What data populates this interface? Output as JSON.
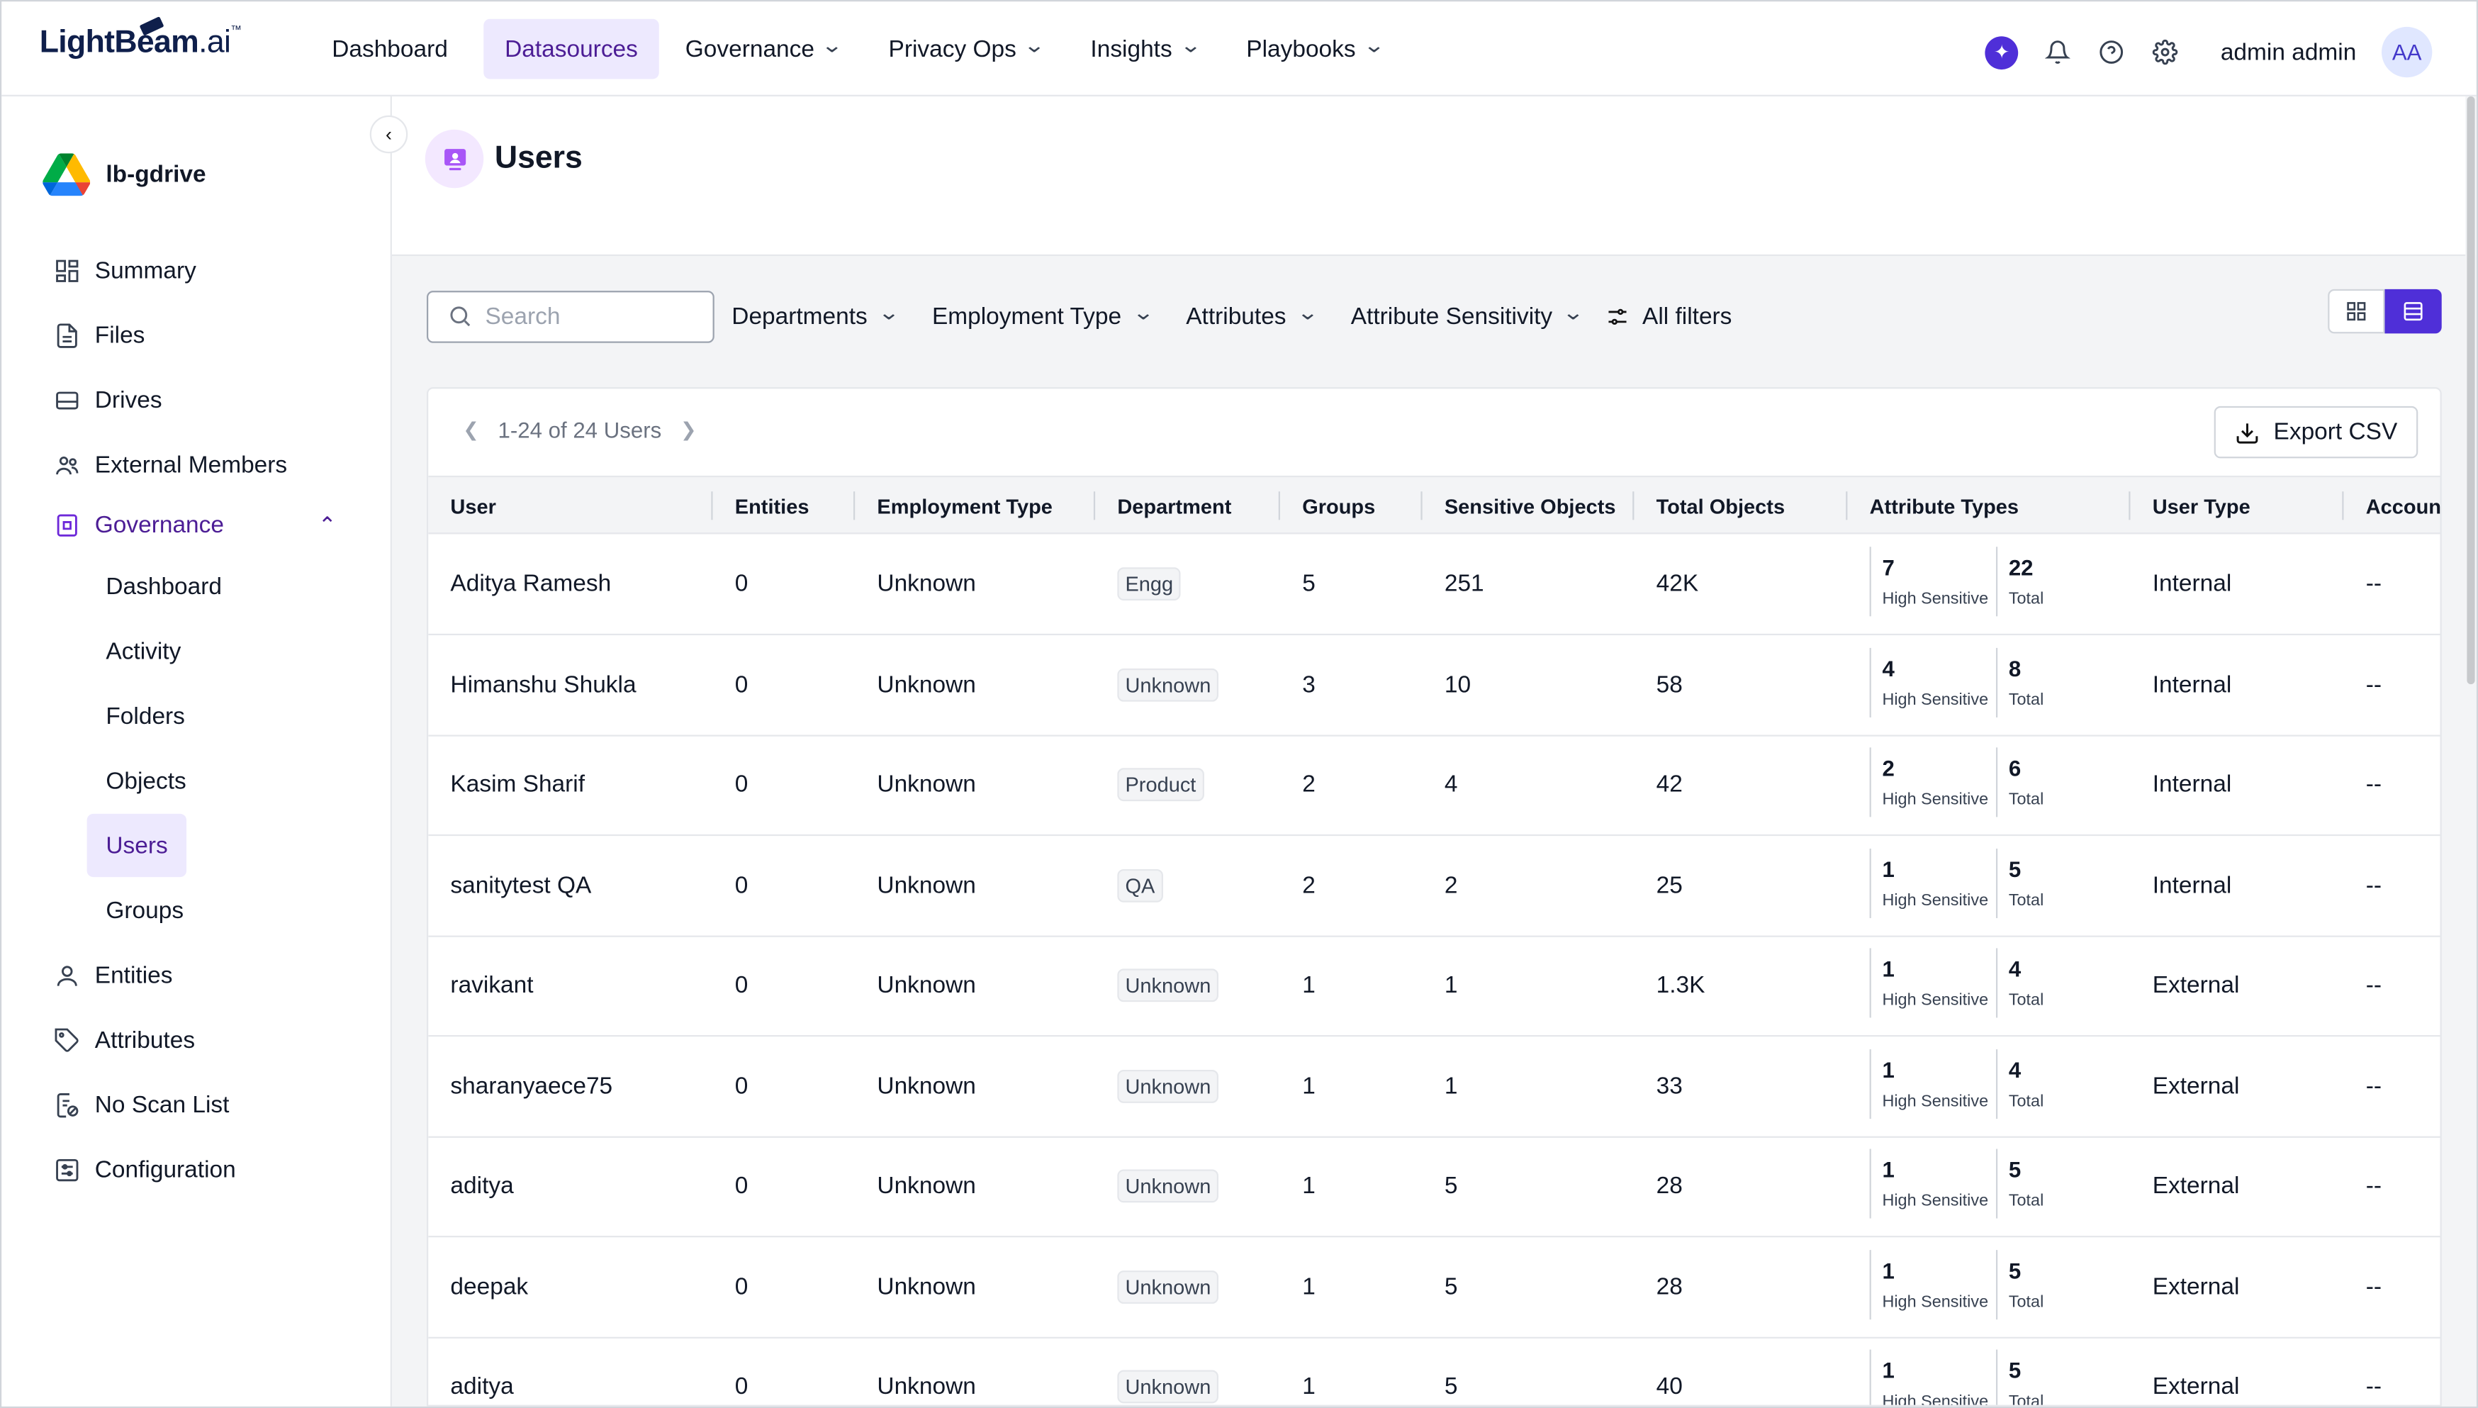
{
  "brand": {
    "name_a": "LightBeam",
    "name_b": ".ai",
    "tm": "™"
  },
  "nav": [
    {
      "label": "Dashboard",
      "dropdown": false,
      "active": false
    },
    {
      "label": "Datasources",
      "dropdown": false,
      "active": true
    },
    {
      "label": "Governance",
      "dropdown": true,
      "active": false
    },
    {
      "label": "Privacy Ops",
      "dropdown": true,
      "active": false
    },
    {
      "label": "Insights",
      "dropdown": true,
      "active": false
    },
    {
      "label": "Playbooks",
      "dropdown": true,
      "active": false
    }
  ],
  "user": {
    "name": "admin admin",
    "initials": "AA"
  },
  "datasource": {
    "name": "lb-gdrive"
  },
  "sidebar": {
    "items": [
      {
        "label": "Summary",
        "icon": "summary-icon"
      },
      {
        "label": "Files",
        "icon": "file-icon"
      },
      {
        "label": "Drives",
        "icon": "drive-icon"
      },
      {
        "label": "External Members",
        "icon": "members-icon"
      }
    ],
    "governance": {
      "label": "Governance",
      "sub": [
        "Dashboard",
        "Activity",
        "Folders",
        "Objects",
        "Users",
        "Groups"
      ],
      "active": "Users"
    },
    "lower": [
      {
        "label": "Entities",
        "icon": "person-icon"
      },
      {
        "label": "Attributes",
        "icon": "tag-icon"
      },
      {
        "label": "No Scan List",
        "icon": "no-scan-icon"
      },
      {
        "label": "Configuration",
        "icon": "configuration-icon"
      }
    ]
  },
  "page": {
    "title": "Users"
  },
  "filters": {
    "search_placeholder": "Search",
    "dropdowns": [
      "Departments",
      "Employment Type",
      "Attributes",
      "Attribute Sensitivity"
    ],
    "all_filters": "All filters"
  },
  "table": {
    "pagination": "1-24 of 24 Users",
    "export_label": "Export CSV",
    "columns": [
      "User",
      "Entities",
      "Employment Type",
      "Department",
      "Groups",
      "Sensitive Objects",
      "Total Objects",
      "Attribute Types",
      "User Type",
      "Accoun"
    ],
    "attr_labels": {
      "high": "High Sensitive",
      "total": "Total"
    },
    "rows": [
      {
        "user": "Aditya Ramesh",
        "entities": "0",
        "employment": "Unknown",
        "department": "Engg",
        "groups": "5",
        "sensitive": "251",
        "total": "42K",
        "attr_high": "7",
        "attr_total": "22",
        "user_type": "Internal",
        "account": "--"
      },
      {
        "user": "Himanshu Shukla",
        "entities": "0",
        "employment": "Unknown",
        "department": "Unknown",
        "groups": "3",
        "sensitive": "10",
        "total": "58",
        "attr_high": "4",
        "attr_total": "8",
        "user_type": "Internal",
        "account": "--"
      },
      {
        "user": "Kasim Sharif",
        "entities": "0",
        "employment": "Unknown",
        "department": "Product",
        "groups": "2",
        "sensitive": "4",
        "total": "42",
        "attr_high": "2",
        "attr_total": "6",
        "user_type": "Internal",
        "account": "--"
      },
      {
        "user": "sanitytest QA",
        "entities": "0",
        "employment": "Unknown",
        "department": "QA",
        "groups": "2",
        "sensitive": "2",
        "total": "25",
        "attr_high": "1",
        "attr_total": "5",
        "user_type": "Internal",
        "account": "--"
      },
      {
        "user": "ravikant",
        "entities": "0",
        "employment": "Unknown",
        "department": "Unknown",
        "groups": "1",
        "sensitive": "1",
        "total": "1.3K",
        "attr_high": "1",
        "attr_total": "4",
        "user_type": "External",
        "account": "--"
      },
      {
        "user": "sharanyaece75",
        "entities": "0",
        "employment": "Unknown",
        "department": "Unknown",
        "groups": "1",
        "sensitive": "1",
        "total": "33",
        "attr_high": "1",
        "attr_total": "4",
        "user_type": "External",
        "account": "--"
      },
      {
        "user": "aditya",
        "entities": "0",
        "employment": "Unknown",
        "department": "Unknown",
        "groups": "1",
        "sensitive": "5",
        "total": "28",
        "attr_high": "1",
        "attr_total": "5",
        "user_type": "External",
        "account": "--"
      },
      {
        "user": "deepak",
        "entities": "0",
        "employment": "Unknown",
        "department": "Unknown",
        "groups": "1",
        "sensitive": "5",
        "total": "28",
        "attr_high": "1",
        "attr_total": "5",
        "user_type": "External",
        "account": "--"
      },
      {
        "user": "aditya",
        "entities": "0",
        "employment": "Unknown",
        "department": "Unknown",
        "groups": "1",
        "sensitive": "5",
        "total": "40",
        "attr_high": "1",
        "attr_total": "5",
        "user_type": "External",
        "account": "--"
      }
    ]
  },
  "colors": {
    "accent": "#4f2fd8",
    "active_bg": "#ede9fe",
    "active_text": "#4c1d95"
  }
}
